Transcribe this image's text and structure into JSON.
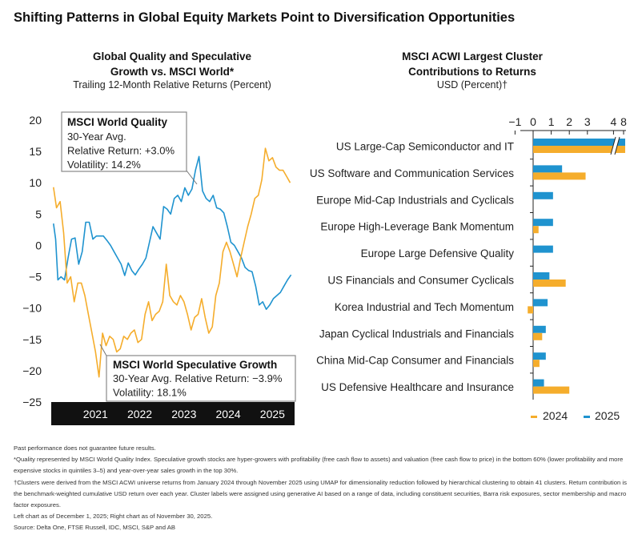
{
  "page": {
    "title": "Shifting Patterns in Global Equity Markets Point to Diversification Opportunities"
  },
  "colors": {
    "orange": "#f5ad2c",
    "blue": "#1f93cf",
    "black": "#111111",
    "grid": "#cfcfcf"
  },
  "chart_data": [
    {
      "type": "line",
      "title": "Global Quality and Speculative Growth vs. MSCI World*",
      "title_line1": "Global Quality and Speculative",
      "title_line2": "Growth vs. MSCI World*",
      "subtitle": "Trailing 12-Month Relative Returns (Percent)",
      "xlabel": "",
      "ylabel": "",
      "ylim": [
        -25,
        20
      ],
      "yticks": [
        "20",
        "15",
        "10",
        "5",
        "0",
        "−5",
        "−10",
        "−15",
        "−20",
        "−25"
      ],
      "ytick_values": [
        20,
        15,
        10,
        5,
        0,
        -5,
        -10,
        -15,
        -20,
        -25
      ],
      "x_range": [
        2020.5,
        2026.0
      ],
      "x_ticks": [
        "2021",
        "2022",
        "2023",
        "2024",
        "2025"
      ],
      "x_tick_values": [
        2021,
        2022,
        2023,
        2024,
        2025
      ],
      "series": [
        {
          "name": "MSCI World Quality",
          "color": "#1f93cf",
          "x": [
            2020.55,
            2020.6,
            2020.65,
            2020.72,
            2020.8,
            2020.88,
            2020.96,
            2021.04,
            2021.12,
            2021.2,
            2021.28,
            2021.36,
            2021.44,
            2021.52,
            2021.6,
            2021.68,
            2021.76,
            2021.84,
            2021.92,
            2022.0,
            2022.08,
            2022.16,
            2022.24,
            2022.32,
            2022.4,
            2022.48,
            2022.56,
            2022.64,
            2022.72,
            2022.8,
            2022.88,
            2022.96,
            2023.04,
            2023.12,
            2023.2,
            2023.28,
            2023.36,
            2023.44,
            2023.52,
            2023.6,
            2023.68,
            2023.76,
            2023.84,
            2023.92,
            2024.0,
            2024.08,
            2024.16,
            2024.24,
            2024.32,
            2024.4,
            2024.48,
            2024.56,
            2024.64,
            2024.72,
            2024.8,
            2024.88,
            2024.96,
            2025.04,
            2025.12,
            2025.2,
            2025.28,
            2025.36,
            2025.44,
            2025.52,
            2025.6,
            2025.68,
            2025.76,
            2025.84,
            2025.92
          ],
          "values": [
            3.5,
            1.0,
            -5.5,
            -5.0,
            -5.5,
            -2.0,
            1.0,
            1.2,
            -3.0,
            -1.0,
            3.7,
            3.7,
            1.0,
            1.5,
            1.5,
            1.5,
            0.8,
            0.0,
            -1.0,
            -2.0,
            -3.0,
            -4.8,
            -2.8,
            -4.0,
            -4.7,
            -3.8,
            -3.0,
            -2.0,
            0.5,
            3.0,
            2.0,
            1.0,
            6.2,
            5.8,
            5.0,
            7.5,
            8.0,
            7.0,
            9.2,
            8.0,
            9.0,
            12.0,
            14.2,
            8.7,
            7.5,
            7.0,
            8.0,
            6.0,
            5.8,
            5.2,
            3.0,
            0.5,
            0.0,
            -1.0,
            -2.0,
            -3.5,
            -4.0,
            -4.2,
            -6.5,
            -9.5,
            -9.0,
            -10.2,
            -9.5,
            -8.5,
            -8.0,
            -7.5,
            -6.5,
            -5.5,
            -4.7
          ]
        },
        {
          "name": "MSCI World Speculative Growth",
          "color": "#f5ad2c",
          "x": [
            2020.55,
            2020.62,
            2020.7,
            2020.78,
            2020.86,
            2020.94,
            2021.02,
            2021.1,
            2021.18,
            2021.26,
            2021.34,
            2021.42,
            2021.5,
            2021.58,
            2021.66,
            2021.74,
            2021.82,
            2021.9,
            2021.98,
            2022.06,
            2022.14,
            2022.22,
            2022.3,
            2022.38,
            2022.46,
            2022.54,
            2022.62,
            2022.7,
            2022.78,
            2022.86,
            2022.94,
            2023.02,
            2023.1,
            2023.18,
            2023.26,
            2023.34,
            2023.42,
            2023.5,
            2023.58,
            2023.66,
            2023.74,
            2023.82,
            2023.9,
            2023.98,
            2024.06,
            2024.14,
            2024.22,
            2024.3,
            2024.38,
            2024.46,
            2024.54,
            2024.62,
            2024.7,
            2024.78,
            2024.86,
            2024.94,
            2025.02,
            2025.1,
            2025.18,
            2025.26,
            2025.34,
            2025.42,
            2025.5,
            2025.58,
            2025.66,
            2025.74,
            2025.82,
            2025.9
          ],
          "values": [
            9.3,
            6.0,
            7.0,
            2.0,
            -6.0,
            -5.0,
            -9.0,
            -6.0,
            -6.0,
            -8.0,
            -11.0,
            -14.0,
            -17.0,
            -21.0,
            -14.0,
            -16.0,
            -14.5,
            -15.0,
            -17.0,
            -16.5,
            -14.5,
            -15.0,
            -14.0,
            -13.5,
            -15.5,
            -15.0,
            -11.0,
            -9.0,
            -12.0,
            -11.0,
            -10.5,
            -9.0,
            -3.0,
            -8.0,
            -9.0,
            -9.5,
            -8.0,
            -9.0,
            -11.0,
            -13.5,
            -11.5,
            -11.0,
            -8.5,
            -11.5,
            -14.0,
            -13.0,
            -8.0,
            -6.0,
            -1.0,
            0.5,
            -1.0,
            -3.0,
            -5.0,
            -2.0,
            0.5,
            3.0,
            5.0,
            7.5,
            8.0,
            10.5,
            15.5,
            13.5,
            14.0,
            12.5,
            12.0,
            12.0,
            11.0,
            10.0
          ]
        }
      ],
      "annotations": [
        {
          "title": "MSCI World Quality",
          "lines": [
            "30-Year Avg.",
            "Relative Return: +3.0%",
            "Volatility: 14.2%"
          ]
        },
        {
          "title": "MSCI World Speculative Growth",
          "lines": [
            "30-Year Avg. Relative Return: −3.9%",
            "Volatility: 18.1%"
          ]
        }
      ]
    },
    {
      "type": "bar",
      "orientation": "horizontal",
      "title": "MSCI ACWI Largest Cluster Contributions to Returns",
      "title_line1": "MSCI ACWI Largest Cluster",
      "title_line2": "Contributions to Returns",
      "subtitle": "USD (Percent)†",
      "xlabel": "",
      "ylabel": "",
      "xlim": [
        -1,
        4
      ],
      "axis_break": "between 4 and 8 on the first bar",
      "x_ticks": [
        "−1",
        "0",
        "1",
        "2",
        "3",
        "4",
        "8"
      ],
      "legend": [
        "2024",
        "2025"
      ],
      "legend_position": "bottom-right",
      "categories": [
        "US Large-Cap Semiconductor and IT",
        "US Software and Communication Services",
        "Europe Mid-Cap Industrials and Cyclicals",
        "Europe High-Leverage Bank Momentum",
        "Europe Large Defensive Quality",
        "US Financials and Consumer Cyclicals",
        "Korea Industrial and Tech Momentum",
        "Japan Cyclical Industrials and Financials",
        "China Mid-Cap Consumer and Financials",
        "US Defensive Healthcare and Insurance"
      ],
      "series": [
        {
          "name": "2025",
          "color": "#1f93cf",
          "values": [
            8.0,
            1.6,
            1.1,
            1.1,
            1.1,
            0.9,
            0.8,
            0.7,
            0.7,
            0.6
          ]
        },
        {
          "name": "2024",
          "color": "#f5ad2c",
          "values": [
            8.0,
            2.9,
            0.0,
            0.3,
            0.0,
            1.8,
            -0.3,
            0.5,
            0.35,
            2.0
          ]
        }
      ]
    }
  ],
  "footnotes": [
    "Past performance does not guarantee future results.",
    "*Quality represented by MSCI World Quality Index. Speculative growth stocks are hyper-growers with profitability (free cash flow to assets) and valuation  (free cash flow to price) in the bottom 60% (lower profitability and more expensive stocks in quintiles 3–5) and year-over-year sales growth in the top 30%.",
    "†Clusters were derived from the MSCI ACWI universe returns from January 2024 through November 2025 using UMAP for dimensionality reduction followed by hierarchical clustering to obtain 41 clusters. Return contribution is the benchmark-weighted cumulative USD return over each year. Cluster labels were assigned using generative AI based on a range of data, including constituent securities, Barra risk exposures, sector membership and macro factor exposures.",
    "Left chart as of December 1, 2025; Right chart as of November 30, 2025.",
    "Source: Delta One, FTSE Russell, IDC, MSCI, S&P and AB"
  ]
}
